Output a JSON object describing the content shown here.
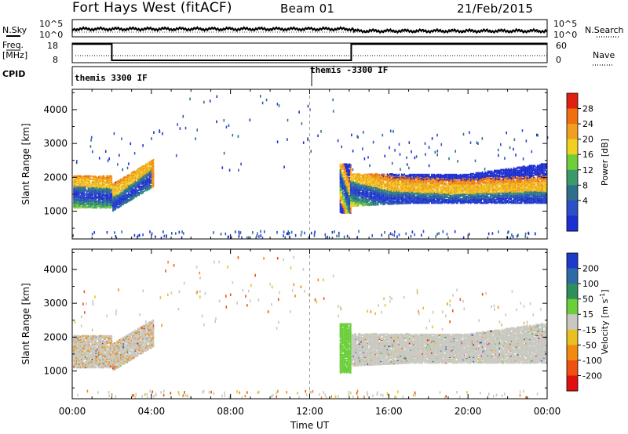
{
  "header": {
    "station": "Fort Hays West (fitACF)",
    "beam": "Beam 01",
    "date": "21/Feb/2015"
  },
  "top_panels": {
    "nsky_label": "N.Sky",
    "nsearch_label": "N.Search",
    "noise_ticks_left": [
      "10^5",
      "10^0"
    ],
    "noise_ticks_right": [
      "10^5",
      "10^0"
    ],
    "freq_label_line1": "Freq.",
    "freq_label_line2": "[MHz]",
    "freq_ticks": [
      "18",
      "8"
    ],
    "nave_label": "Nave",
    "nave_ticks": [
      "60",
      "0"
    ],
    "cpid_label": "CPID",
    "cpid_segments": [
      "themis 3300 IF",
      "themis -3300 IF"
    ]
  },
  "colors": {
    "power": [
      "#1d2fd1",
      "#2b4fc4",
      "#2f6f8c",
      "#3a9a6a",
      "#6ecf3a",
      "#f0d020",
      "#f0a020",
      "#f07010",
      "#e02010"
    ],
    "velocity": [
      "#1d3ac8",
      "#2f6aa8",
      "#2f8f5a",
      "#6acf3a",
      "#c8c8c0",
      "#e8c020",
      "#f08a10",
      "#f05010",
      "#e01010"
    ]
  },
  "chart_data": [
    {
      "type": "heatmap",
      "panel": "power",
      "xlabel": "Time UT",
      "ylabel": "Slant Range [km]",
      "x_ticks": [
        "00:00",
        "04:00",
        "08:00",
        "12:00",
        "16:00",
        "20:00",
        "00:00"
      ],
      "xlim_hours": [
        0,
        24
      ],
      "ylim_km": [
        180,
        4600
      ],
      "y_ticks": [
        1000,
        2000,
        3000,
        4000
      ],
      "colorbar_label": "Power [dB]",
      "colorbar_ticks": [
        "28",
        "24",
        "20",
        "16",
        "12",
        "8",
        "4"
      ],
      "colorbar_range": [
        0,
        30
      ]
    },
    {
      "type": "heatmap",
      "panel": "velocity",
      "xlabel": "Time UT",
      "ylabel": "Slant Range [km]",
      "x_ticks": [
        "00:00",
        "04:00",
        "08:00",
        "12:00",
        "16:00",
        "20:00",
        "00:00"
      ],
      "xlim_hours": [
        0,
        24
      ],
      "ylim_km": [
        180,
        4600
      ],
      "y_ticks": [
        1000,
        2000,
        3000,
        4000
      ],
      "colorbar_label": "Velocity [m s",
      "colorbar_label_sup": "-1",
      "colorbar_label_end": "]",
      "colorbar_ticks": [
        "200",
        "100",
        "50",
        "15",
        "-15",
        "-50",
        "-100",
        "-200"
      ],
      "colorbar_range": [
        -250,
        250
      ]
    }
  ]
}
